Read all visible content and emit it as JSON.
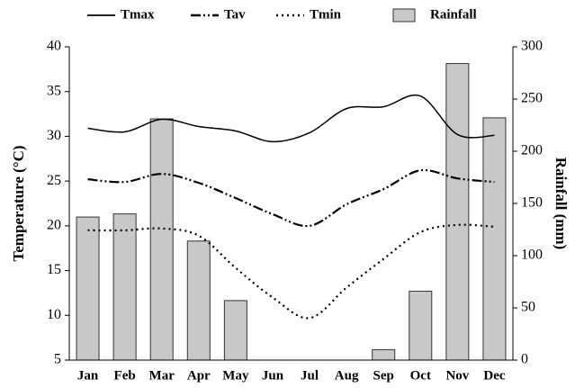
{
  "chart_data": {
    "type": "combo",
    "categories": [
      "Jan",
      "Feb",
      "Mar",
      "Apr",
      "May",
      "Jun",
      "Jul",
      "Aug",
      "Sep",
      "Oct",
      "Nov",
      "Dec"
    ],
    "series": [
      {
        "name": "Tmax",
        "type": "line",
        "line_style": "solid",
        "color": "#000000",
        "values": [
          30.9,
          30.5,
          31.9,
          31.1,
          30.6,
          29.4,
          30.4,
          33.1,
          33.3,
          34.5,
          30.2,
          30.1
        ]
      },
      {
        "name": "Tav",
        "type": "line",
        "line_style": "dashdotdot",
        "color": "#000000",
        "values": [
          25.2,
          24.9,
          25.8,
          24.8,
          23.1,
          21.3,
          20.0,
          22.4,
          24.1,
          26.2,
          25.3,
          24.9
        ]
      },
      {
        "name": "Tmin",
        "type": "line",
        "line_style": "dotted",
        "color": "#000000",
        "values": [
          19.5,
          19.5,
          19.7,
          18.9,
          15.3,
          12.0,
          9.7,
          13.1,
          16.3,
          19.3,
          20.1,
          19.9
        ]
      },
      {
        "name": "Rainfall",
        "type": "bar",
        "axis": "y2",
        "color": "#c8c8c8",
        "values": [
          137,
          140,
          231,
          114,
          57,
          0,
          0,
          0,
          10,
          66,
          284,
          232
        ]
      }
    ],
    "y_label": "Temperature (°C)",
    "y2_label": "Rainfall (mm)",
    "ylim": [
      5,
      40
    ],
    "yticks": [
      5,
      10,
      15,
      20,
      25,
      30,
      35,
      40
    ],
    "y2lim": [
      0,
      300
    ],
    "y2ticks": [
      0,
      50,
      100,
      150,
      200,
      250,
      300
    ],
    "grid": false,
    "legend": "top"
  }
}
